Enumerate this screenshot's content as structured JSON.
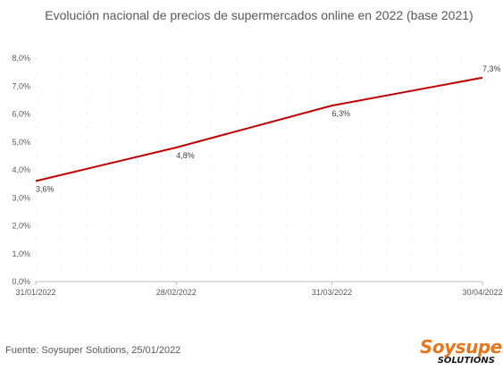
{
  "chart_data": {
    "type": "line",
    "title": "Evolución nacional de precios de supermercados online en 2022  (base 2021)",
    "x": [
      "31/01/2022",
      "28/02/2022",
      "31/03/2022",
      "30/04/2022"
    ],
    "x_days": [
      0,
      28,
      59,
      89
    ],
    "series": [
      {
        "values": [
          3.6,
          4.8,
          6.3,
          7.3
        ],
        "labels": [
          "3,6%",
          "4,8%",
          "6,3%",
          "7,3%"
        ],
        "color": "#c00000"
      }
    ],
    "y_ticks": [
      "0,0%",
      "1,0%",
      "2,0%",
      "3,0%",
      "4,0%",
      "5,0%",
      "6,0%",
      "7,0%",
      "8,0%"
    ],
    "ylim": [
      0,
      8
    ],
    "xlabel": "",
    "ylabel": "",
    "grid": "dotted"
  },
  "footer": {
    "source": "Fuente: Soysuper Solutions, 25/01/2022"
  },
  "logo": {
    "brand": "Soysuper",
    "sub": "SOLUTIONS"
  }
}
